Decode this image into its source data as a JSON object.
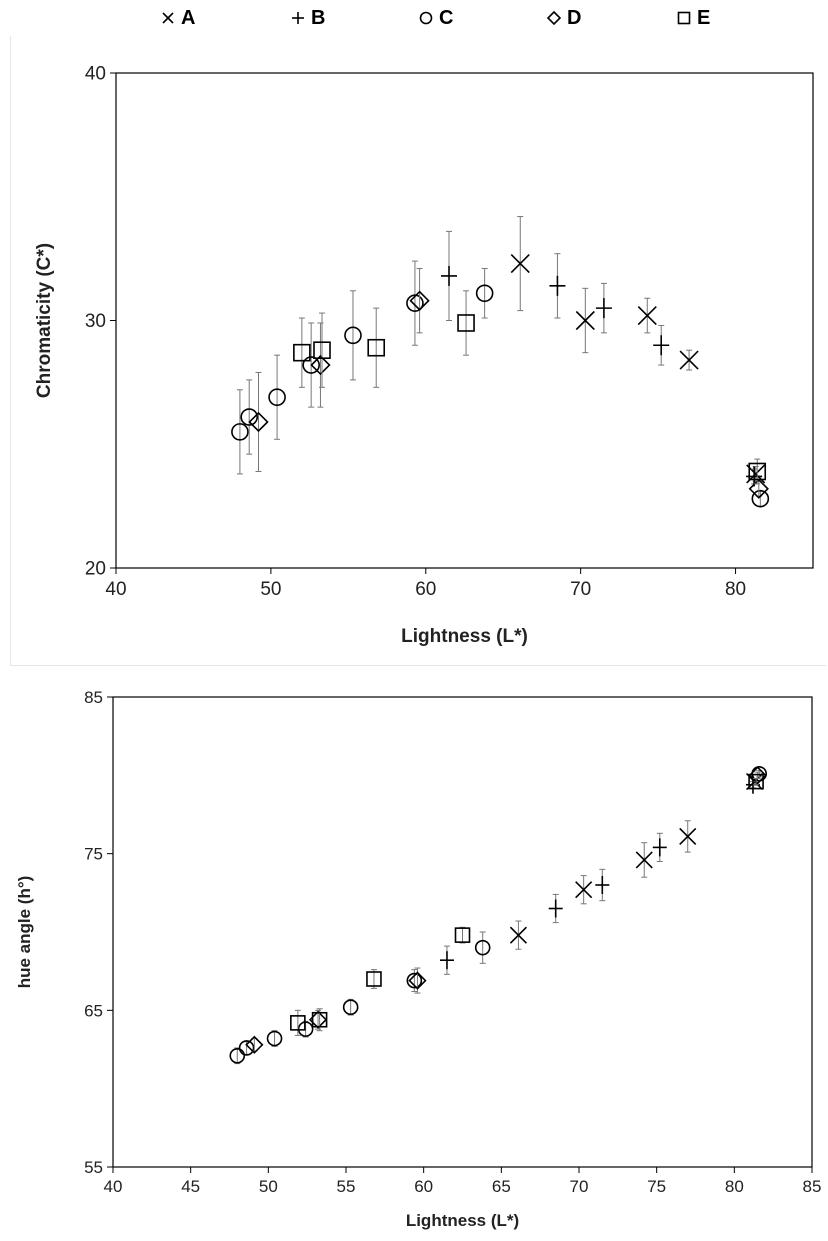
{
  "legend": [
    {
      "label": "A",
      "marker": "x"
    },
    {
      "label": "B",
      "marker": "plus"
    },
    {
      "label": "C",
      "marker": "circle"
    },
    {
      "label": "D",
      "marker": "diamond"
    },
    {
      "label": "E",
      "marker": "square"
    }
  ],
  "chart_data": [
    {
      "type": "scatter",
      "xlabel": "Lightness (L*)",
      "ylabel": "Chromaticity (C*)",
      "xlim": [
        40,
        85
      ],
      "ylim": [
        20,
        40
      ],
      "xticks": [
        40,
        50,
        60,
        70,
        80
      ],
      "yticks": [
        20,
        30,
        40
      ],
      "grid": false,
      "legend_position": "top",
      "series": [
        {
          "name": "A",
          "marker": "x",
          "points": [
            {
              "x": 66.1,
              "y": 32.3,
              "err": 1.9
            },
            {
              "x": 70.3,
              "y": 30.0,
              "err": 1.3
            },
            {
              "x": 74.3,
              "y": 30.2,
              "err": 0.7
            },
            {
              "x": 77.0,
              "y": 28.4,
              "err": 0.4
            },
            {
              "x": 81.3,
              "y": 23.8,
              "err": 0.3
            }
          ]
        },
        {
          "name": "B",
          "marker": "plus",
          "points": [
            {
              "x": 61.5,
              "y": 31.8,
              "err": 1.8
            },
            {
              "x": 68.5,
              "y": 31.4,
              "err": 1.3
            },
            {
              "x": 71.5,
              "y": 30.5,
              "err": 1.0
            },
            {
              "x": 75.2,
              "y": 29.0,
              "err": 0.8
            },
            {
              "x": 81.2,
              "y": 23.7,
              "err": 0.3
            }
          ]
        },
        {
          "name": "C",
          "marker": "circle",
          "points": [
            {
              "x": 48.0,
              "y": 25.5,
              "err": 1.7
            },
            {
              "x": 48.6,
              "y": 26.1,
              "err": 1.5
            },
            {
              "x": 50.4,
              "y": 26.9,
              "err": 1.7
            },
            {
              "x": 52.6,
              "y": 28.2,
              "err": 1.7
            },
            {
              "x": 55.3,
              "y": 29.4,
              "err": 1.8
            },
            {
              "x": 59.3,
              "y": 30.7,
              "err": 1.7
            },
            {
              "x": 63.8,
              "y": 31.1,
              "err": 1.0
            },
            {
              "x": 81.6,
              "y": 22.8,
              "err": 0.3
            }
          ]
        },
        {
          "name": "D",
          "marker": "diamond",
          "points": [
            {
              "x": 49.2,
              "y": 25.9,
              "err": 2.0
            },
            {
              "x": 53.2,
              "y": 28.2,
              "err": 1.7
            },
            {
              "x": 59.6,
              "y": 30.8,
              "err": 1.3
            },
            {
              "x": 81.5,
              "y": 23.2,
              "err": 0.3
            }
          ]
        },
        {
          "name": "E",
          "marker": "square",
          "points": [
            {
              "x": 52.0,
              "y": 28.7,
              "err": 1.4
            },
            {
              "x": 53.3,
              "y": 28.8,
              "err": 1.5
            },
            {
              "x": 56.8,
              "y": 28.9,
              "err": 1.6
            },
            {
              "x": 62.6,
              "y": 29.9,
              "err": 1.3
            },
            {
              "x": 81.4,
              "y": 23.9,
              "err": 0.5
            }
          ]
        }
      ]
    },
    {
      "type": "scatter",
      "xlabel": "Lightness (L*)",
      "ylabel": "hue angle (h°)",
      "xlim": [
        40,
        85
      ],
      "ylim": [
        55,
        85
      ],
      "xticks": [
        40,
        45,
        50,
        55,
        60,
        65,
        70,
        75,
        80,
        85
      ],
      "yticks": [
        55,
        65,
        75,
        85
      ],
      "grid": false,
      "legend_position": "top",
      "series": [
        {
          "name": "A",
          "marker": "x",
          "points": [
            {
              "x": 66.1,
              "y": 69.8,
              "err": 0.9
            },
            {
              "x": 70.3,
              "y": 72.7,
              "err": 0.9
            },
            {
              "x": 74.2,
              "y": 74.6,
              "err": 1.1
            },
            {
              "x": 77.0,
              "y": 76.1,
              "err": 1.0
            },
            {
              "x": 81.3,
              "y": 79.6,
              "err": 0.2
            }
          ]
        },
        {
          "name": "B",
          "marker": "plus",
          "points": [
            {
              "x": 61.5,
              "y": 68.2,
              "err": 0.9
            },
            {
              "x": 68.5,
              "y": 71.5,
              "err": 0.9
            },
            {
              "x": 71.5,
              "y": 73.0,
              "err": 1.0
            },
            {
              "x": 75.2,
              "y": 75.4,
              "err": 0.9
            },
            {
              "x": 81.2,
              "y": 79.4,
              "err": 0.2
            }
          ]
        },
        {
          "name": "C",
          "marker": "circle",
          "points": [
            {
              "x": 48.0,
              "y": 62.1,
              "err": 0.5
            },
            {
              "x": 48.6,
              "y": 62.6,
              "err": 0.4
            },
            {
              "x": 50.4,
              "y": 63.2,
              "err": 0.5
            },
            {
              "x": 52.4,
              "y": 63.8,
              "err": 0.5
            },
            {
              "x": 55.3,
              "y": 65.2,
              "err": 0.5
            },
            {
              "x": 59.4,
              "y": 66.9,
              "err": 0.7
            },
            {
              "x": 63.8,
              "y": 69.0,
              "err": 1.0
            },
            {
              "x": 81.6,
              "y": 80.1,
              "err": 0.2
            }
          ]
        },
        {
          "name": "D",
          "marker": "diamond",
          "points": [
            {
              "x": 49.1,
              "y": 62.8,
              "err": 0.4
            },
            {
              "x": 53.2,
              "y": 64.4,
              "err": 0.6
            },
            {
              "x": 59.6,
              "y": 66.9,
              "err": 0.8
            },
            {
              "x": 81.5,
              "y": 80.0,
              "err": 0.2
            }
          ]
        },
        {
          "name": "E",
          "marker": "square",
          "points": [
            {
              "x": 51.9,
              "y": 64.2,
              "err": 0.8
            },
            {
              "x": 53.3,
              "y": 64.4,
              "err": 0.7
            },
            {
              "x": 56.8,
              "y": 67.0,
              "err": 0.6
            },
            {
              "x": 62.5,
              "y": 69.8,
              "err": 0.5
            },
            {
              "x": 81.4,
              "y": 79.6,
              "err": 0.2
            }
          ]
        }
      ]
    }
  ]
}
